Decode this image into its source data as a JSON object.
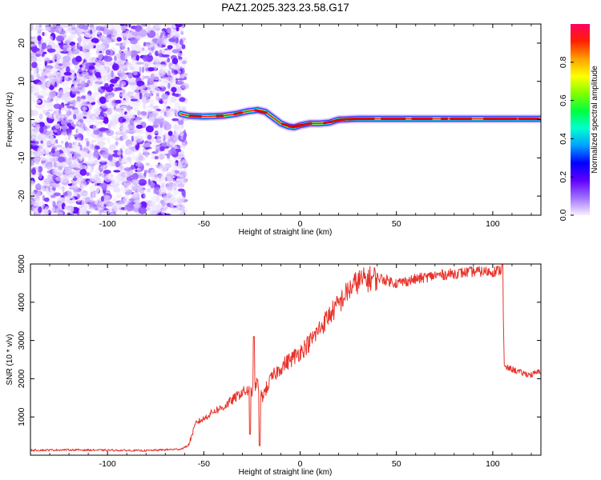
{
  "title": "PAZ1.2025.323.23.58.G17",
  "chart_data": [
    {
      "type": "heatmap",
      "name": "spectrogram",
      "xlabel": "Height of straight line (km)",
      "ylabel": "Frequency (Hz)",
      "xlim": [
        -140,
        125
      ],
      "ylim": [
        -25,
        25
      ],
      "x_ticks": [
        -100,
        -50,
        0,
        50,
        100
      ],
      "y_ticks": [
        -20,
        -10,
        0,
        10,
        20
      ],
      "noise_region_x": [
        -140,
        -62
      ],
      "signal_track": {
        "x": [
          -62,
          -58,
          -50,
          -40,
          -33,
          -27,
          -22,
          -18,
          -14,
          -10,
          -6,
          -3,
          0,
          5,
          10,
          15,
          20,
          30,
          50,
          75,
          100,
          125
        ],
        "frequency": [
          1.5,
          1.0,
          0.8,
          1.0,
          1.5,
          2.2,
          2.5,
          2.0,
          0.5,
          -1.0,
          -1.8,
          -2.0,
          -1.5,
          -1.0,
          -1.0,
          -0.8,
          0.0,
          0.2,
          0.2,
          0.2,
          0.2,
          0.2
        ]
      },
      "colorbar": {
        "label": "Normalized spectral amplitude",
        "range": [
          0,
          1
        ],
        "ticks": [
          "0.0",
          "0.2",
          "0.4",
          "0.6",
          "0.8"
        ],
        "colors": [
          "#f7f0ff",
          "#a070ff",
          "#6000ff",
          "#0000ff",
          "#00a0ff",
          "#00ffd0",
          "#00ff40",
          "#80ff00",
          "#ffff00",
          "#ffa000",
          "#ff2000",
          "#ff0060"
        ]
      }
    },
    {
      "type": "line",
      "name": "snr",
      "color": "#e8322a",
      "xlabel": "Height of straight line (km)",
      "ylabel": "SNR (10 * v/v)",
      "xlim": [
        -140,
        125
      ],
      "ylim": [
        0,
        5000
      ],
      "x_ticks": [
        -100,
        -50,
        0,
        50,
        100
      ],
      "y_ticks": [
        1000,
        2000,
        3000,
        4000,
        5000
      ],
      "x": [
        -140,
        -120,
        -100,
        -80,
        -62,
        -58,
        -56,
        -54,
        -50,
        -45,
        -40,
        -35,
        -30,
        -25,
        -22,
        -20,
        -15,
        -10,
        -5,
        0,
        5,
        10,
        15,
        20,
        25,
        30,
        35,
        40,
        50,
        60,
        70,
        80,
        90,
        100,
        105,
        106,
        110,
        115,
        120,
        125
      ],
      "y": [
        130,
        140,
        130,
        120,
        160,
        250,
        550,
        850,
        950,
        1150,
        1250,
        1450,
        1650,
        1700,
        1900,
        1500,
        2000,
        2300,
        2500,
        2700,
        2950,
        3300,
        3650,
        3950,
        4300,
        4550,
        4600,
        4650,
        4500,
        4600,
        4700,
        4750,
        4800,
        4800,
        4850,
        2300,
        2250,
        2150,
        2100,
        2200
      ],
      "spikes": [
        {
          "x": -24,
          "y": 3100
        },
        {
          "x": -21,
          "y": 250
        },
        {
          "x": -26,
          "y": 550
        },
        {
          "x": 105,
          "y": 5000
        }
      ]
    }
  ]
}
